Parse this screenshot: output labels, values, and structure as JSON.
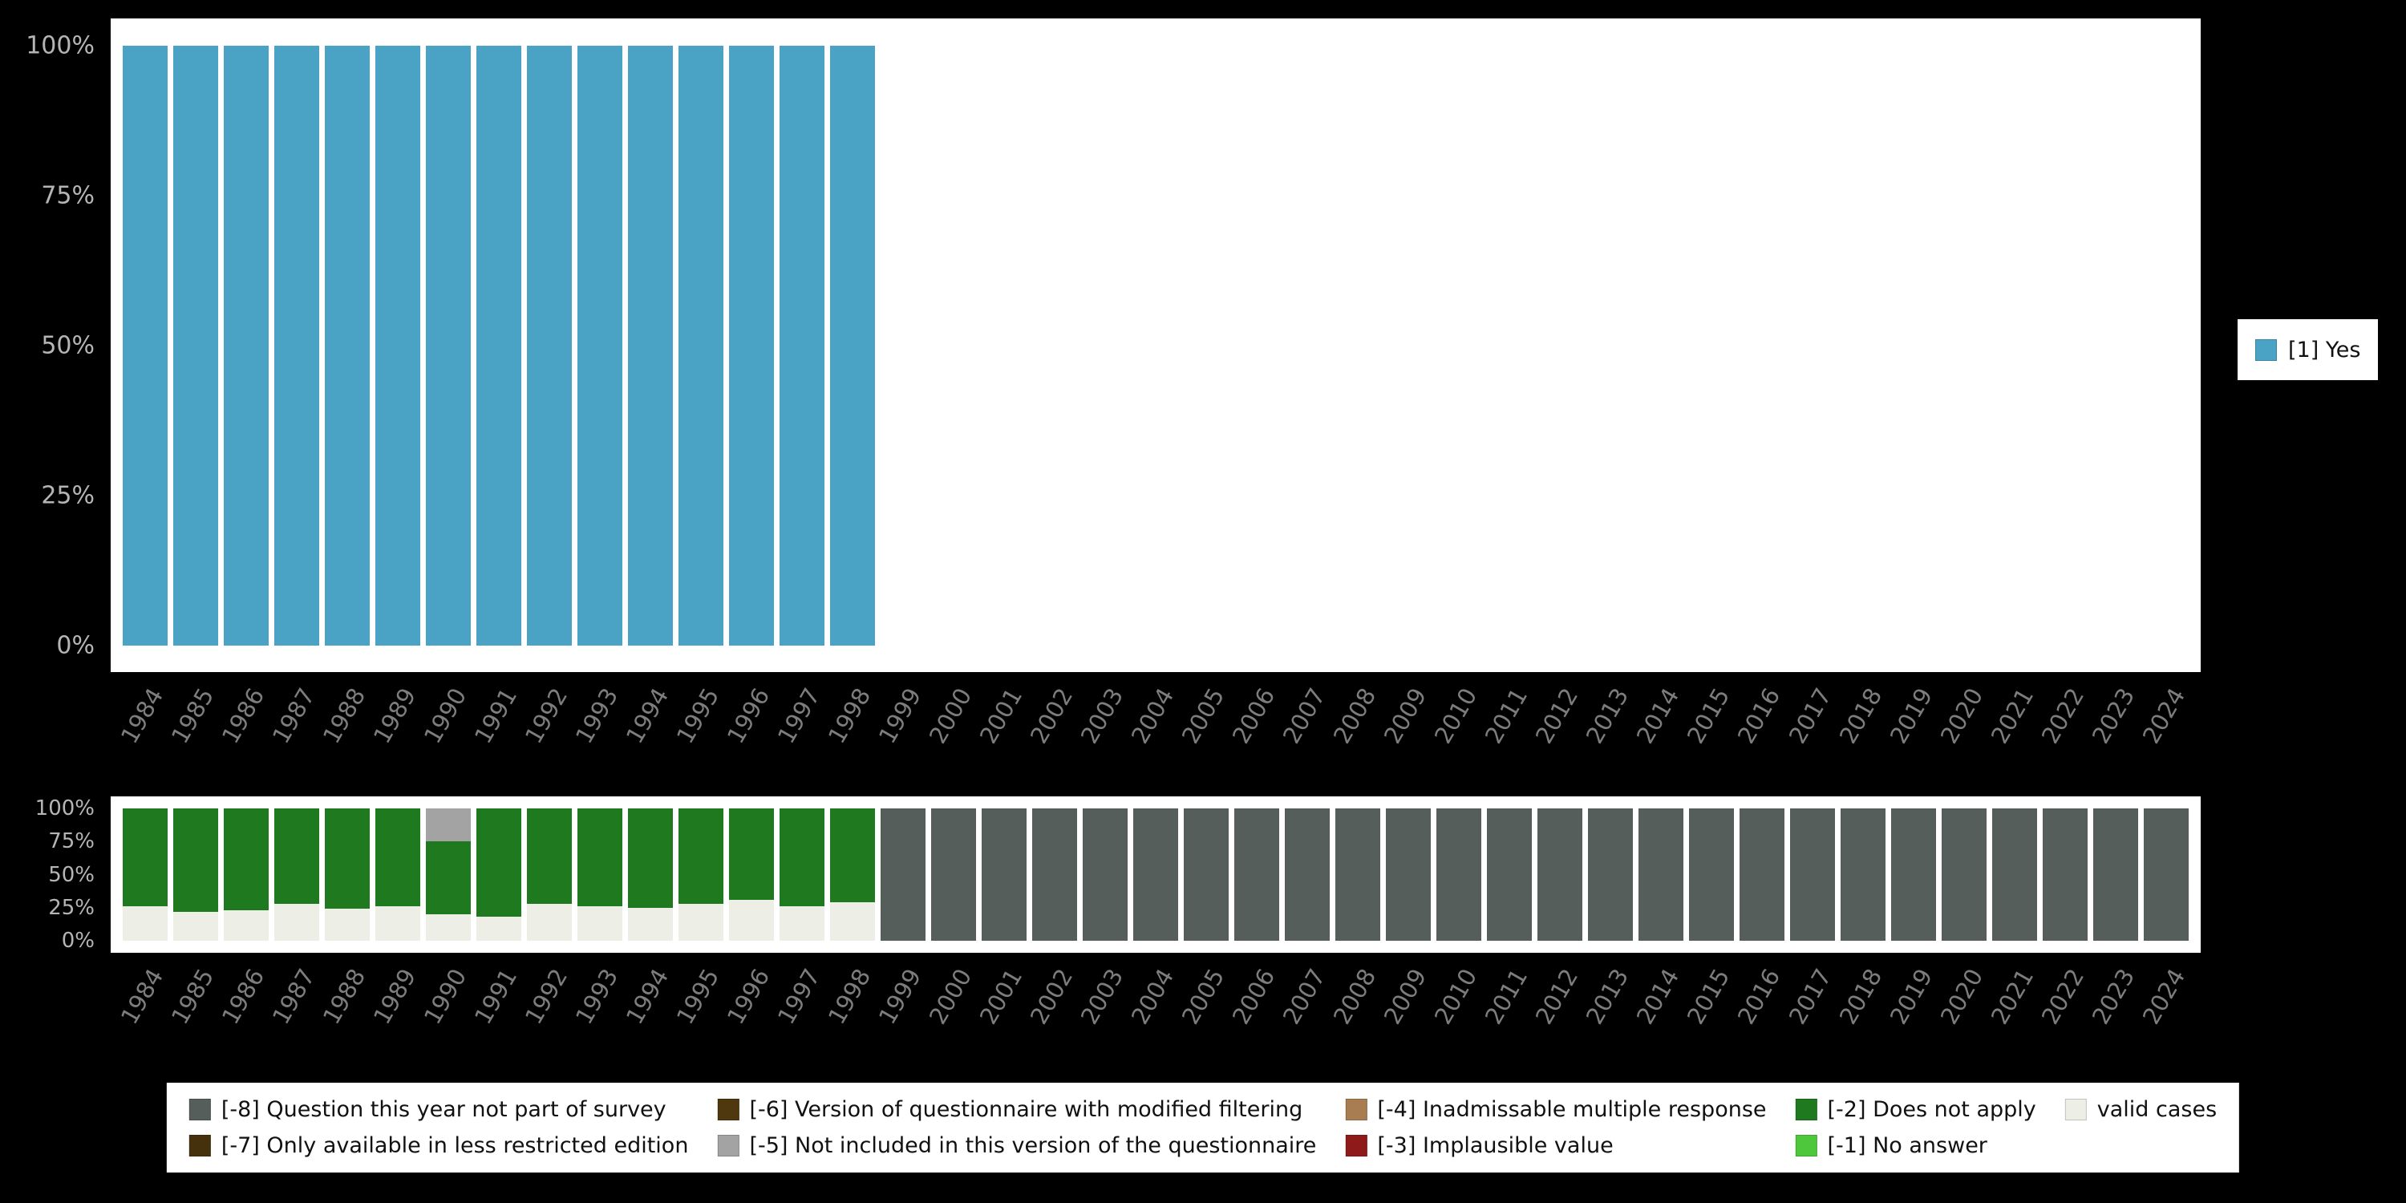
{
  "page": {
    "background": "#000000",
    "plot_background": "#ffffff"
  },
  "years": [
    "1984",
    "1985",
    "1986",
    "1987",
    "1988",
    "1989",
    "1990",
    "1991",
    "1992",
    "1993",
    "1994",
    "1995",
    "1996",
    "1997",
    "1998",
    "1999",
    "2000",
    "2001",
    "2002",
    "2003",
    "2004",
    "2005",
    "2006",
    "2007",
    "2008",
    "2009",
    "2010",
    "2011",
    "2012",
    "2013",
    "2014",
    "2015",
    "2016",
    "2017",
    "2018",
    "2019",
    "2020",
    "2021",
    "2022",
    "2023",
    "2024"
  ],
  "chart_data": [
    {
      "type": "bar",
      "title": "",
      "xlabel": "",
      "ylabel": "",
      "ylim": [
        0,
        100
      ],
      "yticks": [
        "0%",
        "25%",
        "50%",
        "75%",
        "100%"
      ],
      "grid": false,
      "legend_position": "right",
      "x": [
        "1984",
        "1985",
        "1986",
        "1987",
        "1988",
        "1989",
        "1990",
        "1991",
        "1992",
        "1993",
        "1994",
        "1995",
        "1996",
        "1997",
        "1998",
        "1999",
        "2000",
        "2001",
        "2002",
        "2003",
        "2004",
        "2005",
        "2006",
        "2007",
        "2008",
        "2009",
        "2010",
        "2011",
        "2012",
        "2013",
        "2014",
        "2015",
        "2016",
        "2017",
        "2018",
        "2019",
        "2020",
        "2021",
        "2022",
        "2023",
        "2024"
      ],
      "series": [
        {
          "name": "[1] Yes",
          "color": "#4aa2c4",
          "values": [
            100,
            100,
            100,
            100,
            100,
            100,
            100,
            100,
            100,
            100,
            100,
            100,
            100,
            100,
            100,
            0,
            0,
            0,
            0,
            0,
            0,
            0,
            0,
            0,
            0,
            0,
            0,
            0,
            0,
            0,
            0,
            0,
            0,
            0,
            0,
            0,
            0,
            0,
            0,
            0,
            0
          ]
        }
      ]
    },
    {
      "type": "stacked-bar",
      "title": "",
      "xlabel": "",
      "ylabel": "",
      "ylim": [
        0,
        100
      ],
      "yticks": [
        "0%",
        "25%",
        "50%",
        "75%",
        "100%"
      ],
      "grid": false,
      "legend_position": "bottom",
      "x": [
        "1984",
        "1985",
        "1986",
        "1987",
        "1988",
        "1989",
        "1990",
        "1991",
        "1992",
        "1993",
        "1994",
        "1995",
        "1996",
        "1997",
        "1998",
        "1999",
        "2000",
        "2001",
        "2002",
        "2003",
        "2004",
        "2005",
        "2006",
        "2007",
        "2008",
        "2009",
        "2010",
        "2011",
        "2012",
        "2013",
        "2014",
        "2015",
        "2016",
        "2017",
        "2018",
        "2019",
        "2020",
        "2021",
        "2022",
        "2023",
        "2024"
      ],
      "series": [
        {
          "name": "valid cases",
          "color": "#edeee6",
          "values": [
            26,
            22,
            23,
            28,
            24,
            26,
            20,
            18,
            28,
            26,
            25,
            28,
            31,
            26,
            29,
            0,
            0,
            0,
            0,
            0,
            0,
            0,
            0,
            0,
            0,
            0,
            0,
            0,
            0,
            0,
            0,
            0,
            0,
            0,
            0,
            0,
            0,
            0,
            0,
            0,
            0
          ]
        },
        {
          "name": "[-2] Does not apply",
          "color": "#1f7a1f",
          "values": [
            74,
            78,
            77,
            72,
            76,
            74,
            55,
            82,
            72,
            74,
            75,
            72,
            69,
            74,
            71,
            0,
            0,
            0,
            0,
            0,
            0,
            0,
            0,
            0,
            0,
            0,
            0,
            0,
            0,
            0,
            0,
            0,
            0,
            0,
            0,
            0,
            0,
            0,
            0,
            0,
            0
          ]
        },
        {
          "name": "[-5] Not included in this version of the questionnaire",
          "color": "#a3a3a3",
          "values": [
            0,
            0,
            0,
            0,
            0,
            0,
            25,
            0,
            0,
            0,
            0,
            0,
            0,
            0,
            0,
            0,
            0,
            0,
            0,
            0,
            0,
            0,
            0,
            0,
            0,
            0,
            0,
            0,
            0,
            0,
            0,
            0,
            0,
            0,
            0,
            0,
            0,
            0,
            0,
            0,
            0
          ]
        },
        {
          "name": "[-8] Question this year not part of survey",
          "color": "#565e5b",
          "values": [
            0,
            0,
            0,
            0,
            0,
            0,
            0,
            0,
            0,
            0,
            0,
            0,
            0,
            0,
            0,
            100,
            100,
            100,
            100,
            100,
            100,
            100,
            100,
            100,
            100,
            100,
            100,
            100,
            100,
            100,
            100,
            100,
            100,
            100,
            100,
            100,
            100,
            100,
            100,
            100,
            100
          ]
        }
      ]
    }
  ],
  "legends": {
    "main": {
      "items": [
        {
          "label": "[1] Yes",
          "color": "#4aa2c4",
          "icon": "square-swatch-icon"
        }
      ]
    },
    "missing": {
      "items": [
        {
          "label": "[-8] Question this year not part of survey",
          "color": "#565e5b",
          "icon": "square-swatch-icon"
        },
        {
          "label": "[-7] Only available in less restricted edition",
          "color": "#45310c",
          "icon": "square-swatch-icon"
        },
        {
          "label": "[-6] Version of questionnaire with modified filtering",
          "color": "#4f370e",
          "icon": "square-swatch-icon"
        },
        {
          "label": "[-5] Not included in this version of the questionnaire",
          "color": "#a3a3a3",
          "icon": "square-swatch-icon"
        },
        {
          "label": "[-4] Inadmissable multiple response",
          "color": "#a87d52",
          "icon": "square-swatch-icon"
        },
        {
          "label": "[-3] Implausible value",
          "color": "#8e1a1a",
          "icon": "square-swatch-icon"
        },
        {
          "label": "[-2] Does not apply",
          "color": "#1f7a1f",
          "icon": "square-swatch-icon"
        },
        {
          "label": "[-1] No answer",
          "color": "#4ec73c",
          "icon": "square-swatch-icon"
        },
        {
          "label": "valid cases",
          "color": "#edeee6",
          "icon": "square-swatch-icon"
        }
      ]
    }
  }
}
